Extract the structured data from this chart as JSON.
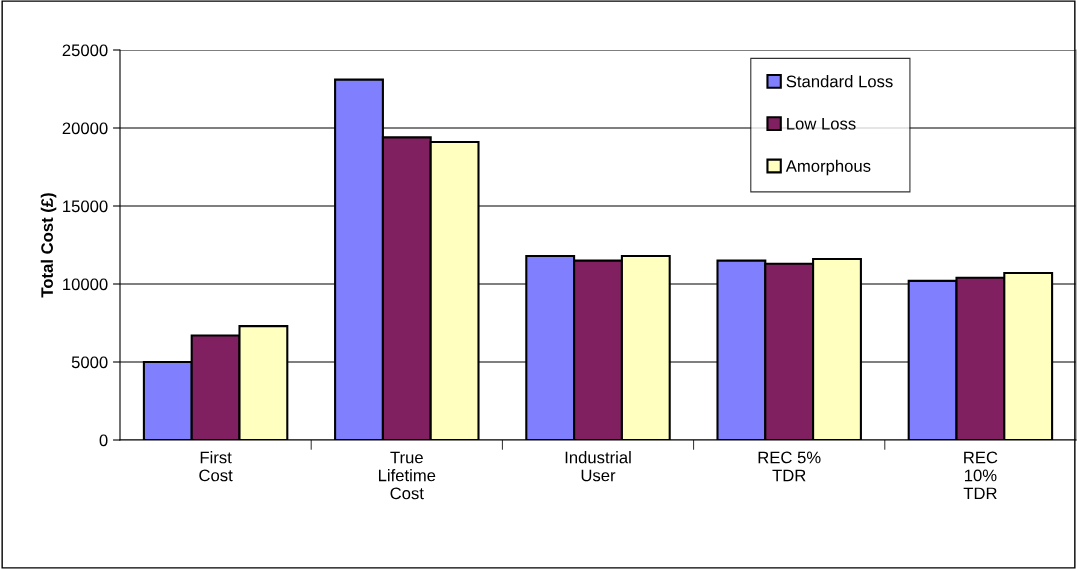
{
  "chart_data": {
    "type": "bar",
    "ylabel": "Total Cost (£)",
    "categories": [
      "First\nCost",
      "True\nLifetime\nCost",
      "Industrial\nUser",
      "REC 5%\nTDR",
      "REC\n10%\nTDR"
    ],
    "series": [
      {
        "name": "Standard Loss",
        "color": "#8080ff",
        "values": [
          5000,
          23100,
          11800,
          11500,
          10200
        ]
      },
      {
        "name": "Low Loss",
        "color": "#802060",
        "values": [
          6700,
          19400,
          11500,
          11300,
          10400
        ]
      },
      {
        "name": "Amorphous",
        "color": "#ffffc0",
        "values": [
          7300,
          19100,
          11800,
          11600,
          10700
        ]
      }
    ],
    "ylim": [
      0,
      25000
    ],
    "yticks": [
      0,
      5000,
      10000,
      15000,
      20000,
      25000
    ],
    "grid": "y",
    "legend": "top right"
  }
}
